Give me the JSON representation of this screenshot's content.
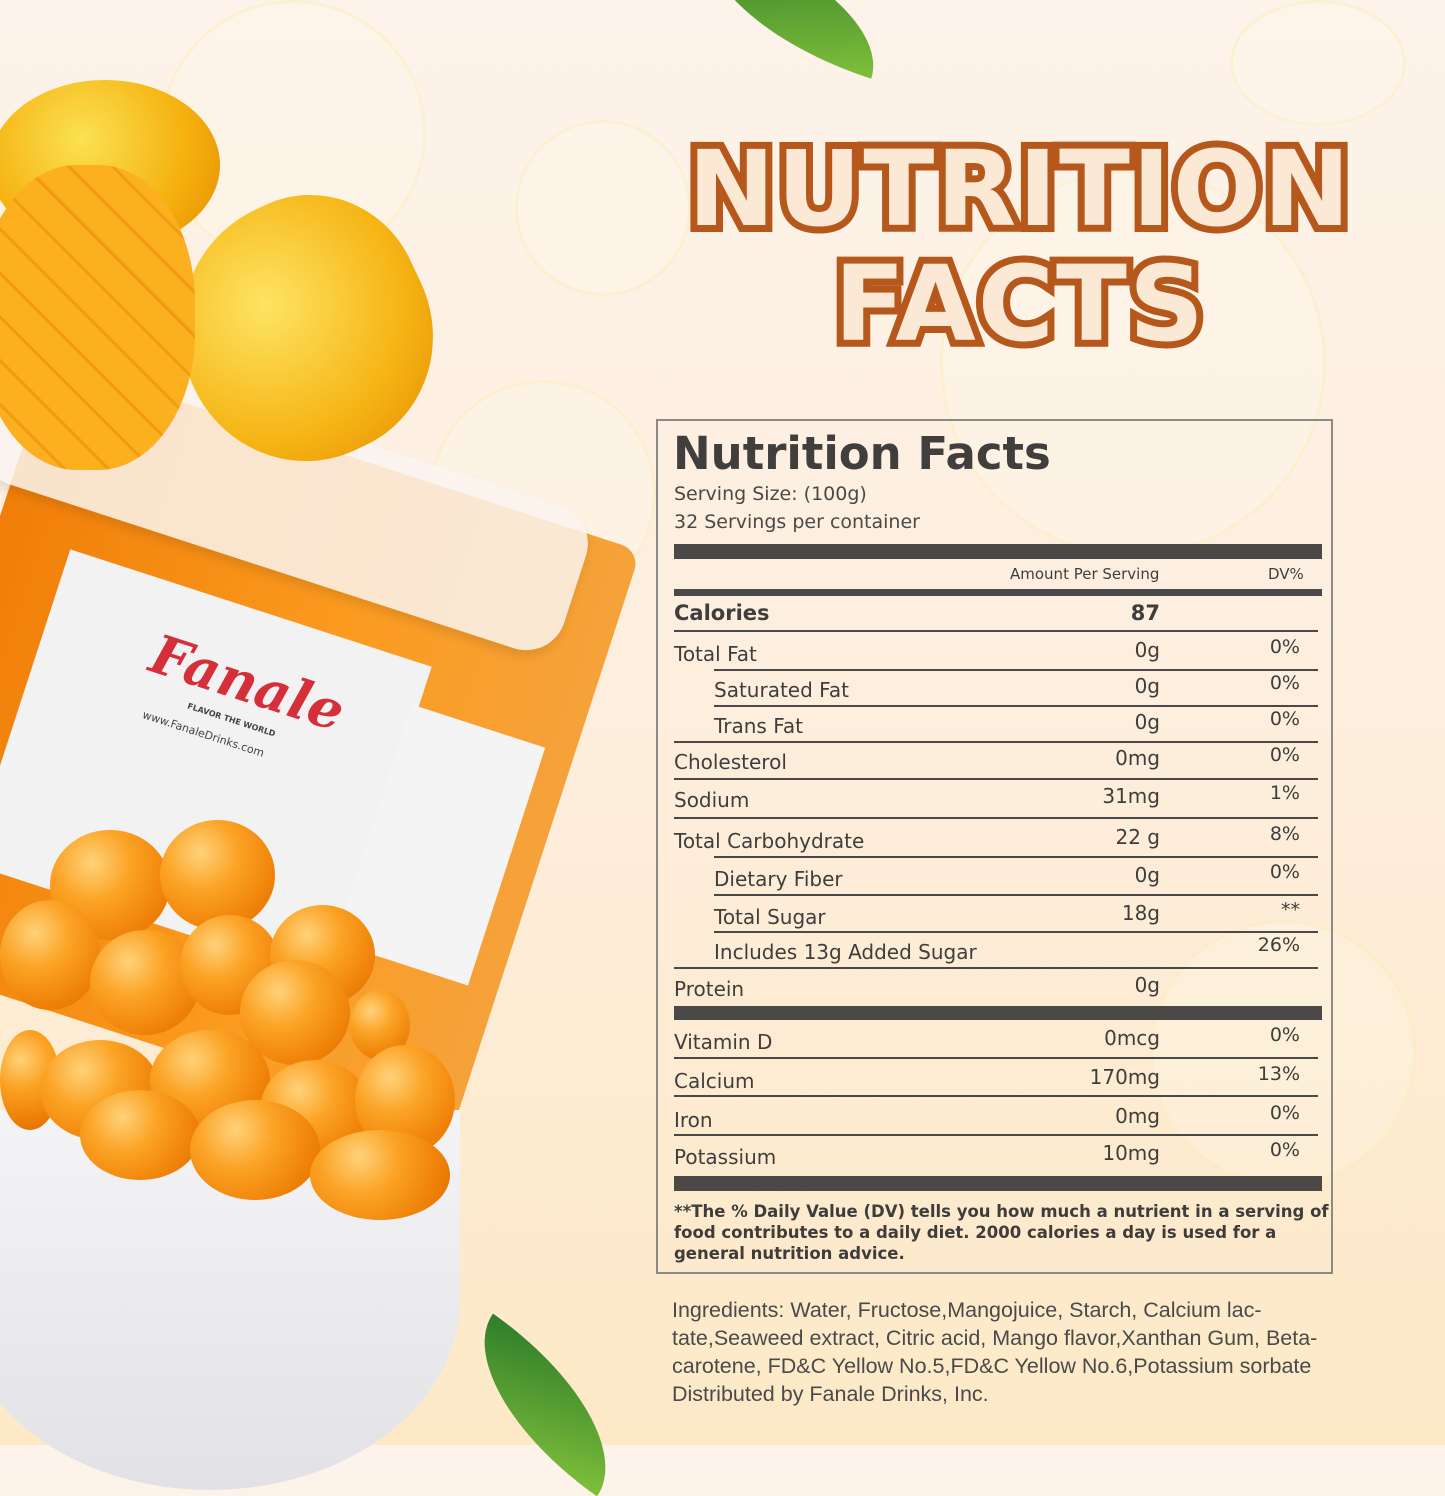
{
  "headline": {
    "line1": "NUTRITION",
    "line2": "FACTS"
  },
  "product": {
    "brand": "Fanale",
    "tagline": "FLAVOR THE WORLD",
    "website": "www.FanaleDrinks.com"
  },
  "label": {
    "title": "Nutrition Facts",
    "serving_size": "Serving Size:  (100g)",
    "servings": "32 Servings per container",
    "col_amount": "Amount Per Serving",
    "col_dv": "DV%",
    "calories": {
      "name": "Calories",
      "amount": "87"
    },
    "rows": [
      {
        "name": "Total Fat",
        "amount": "0g",
        "dv": "0%"
      },
      {
        "name": "Saturated Fat",
        "amount": "0g",
        "dv": "0%"
      },
      {
        "name": "Trans Fat",
        "amount": "0g",
        "dv": "0%"
      },
      {
        "name": "Cholesterol",
        "amount": "0mg",
        "dv": "0%"
      },
      {
        "name": "Sodium",
        "amount": "31mg",
        "dv": "1%"
      },
      {
        "name": "Total Carbohydrate",
        "amount": "22 g",
        "dv": "8%"
      },
      {
        "name": "Dietary Fiber",
        "amount": "0g",
        "dv": "0%"
      },
      {
        "name": "Total Sugar",
        "amount": "18g",
        "dv": "**"
      },
      {
        "name": "Includes 13g Added Sugar",
        "amount": "",
        "dv": "26%"
      },
      {
        "name": "Protein",
        "amount": "0g",
        "dv": ""
      }
    ],
    "vitamins": [
      {
        "name": "Vitamin D",
        "amount": "0mcg",
        "dv": "0%"
      },
      {
        "name": "Calcium",
        "amount": "170mg",
        "dv": "13%"
      },
      {
        "name": "Iron",
        "amount": "0mg",
        "dv": "0%"
      },
      {
        "name": "Potassium",
        "amount": "10mg",
        "dv": "0%"
      }
    ],
    "footnote": "**The % Daily Value (DV) tells you how much a nutrient in a serving of food contributes to a daily diet. 2000 calories a  day is used for a general nutrition advice."
  },
  "ingredients": "Ingredients: Water, Fructose,Mangojuice, Starch, Calcium lac-tate,Seaweed extract, Citric acid, Mango flavor,Xanthan Gum, Beta-carotene, FD&C Yellow No.5,FD&C Yellow No.6,Potassium sorbate Distributed by Fanale Drinks, Inc.",
  "colors": {
    "title_stroke": "#b6581c",
    "label_text": "#403f3d",
    "orange": "#f08a0c"
  }
}
